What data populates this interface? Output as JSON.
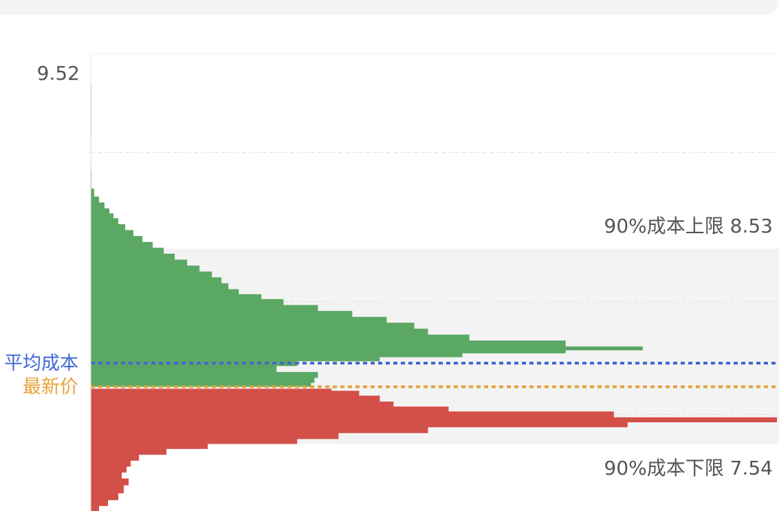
{
  "chart_data": {
    "type": "area",
    "title": "",
    "xlabel": "",
    "ylabel": "",
    "ylim": [
      7.2,
      9.52
    ],
    "y_top_label": "9.52",
    "band": {
      "upper": 8.53,
      "lower": 7.54,
      "upper_label": "90%成本上限 8.53",
      "lower_label": "90%成本下限 7.54"
    },
    "reference_lines": [
      {
        "name": "平均成本",
        "value": 7.95,
        "color": "#4169d4"
      },
      {
        "name": "最新价",
        "value": 7.83,
        "color": "#e8a33a"
      }
    ],
    "colors": {
      "profit": "#5aa864",
      "loss": "#d35048",
      "band_fill": "#f3f3f3",
      "grid": "#dddddd"
    },
    "series": [
      {
        "name": "",
        "points": [
          [
            9.52,
            0.4
          ],
          [
            9.2,
            0.8
          ],
          [
            9.0,
            0.6
          ],
          [
            8.86,
            1.0
          ],
          [
            8.81,
            5.0
          ],
          [
            8.78,
            12.0
          ],
          [
            8.75,
            20.0
          ],
          [
            8.72,
            27.0
          ],
          [
            8.7,
            33.0
          ],
          [
            8.67,
            40.0
          ],
          [
            8.64,
            50.0
          ],
          [
            8.61,
            62.0
          ],
          [
            8.58,
            75.0
          ],
          [
            8.55,
            90.0
          ],
          [
            8.52,
            106.0
          ],
          [
            8.49,
            122.0
          ],
          [
            8.46,
            140.0
          ],
          [
            8.43,
            158.0
          ],
          [
            8.4,
            176.0
          ],
          [
            8.37,
            190.0
          ],
          [
            8.34,
            200.0
          ],
          [
            8.31,
            215.0
          ],
          [
            8.29,
            248.0
          ],
          [
            8.26,
            280.0
          ],
          [
            8.23,
            330.0
          ],
          [
            8.2,
            380.0
          ],
          [
            8.17,
            430.0
          ],
          [
            8.14,
            470.0
          ],
          [
            8.11,
            490.0
          ],
          [
            8.08,
            550.0
          ],
          [
            8.05,
            690.0
          ],
          [
            8.02,
            802.0
          ],
          [
            8.01,
            690.0
          ],
          [
            7.99,
            540.0
          ],
          [
            7.97,
            420.0
          ],
          [
            7.95,
            300.0
          ],
          [
            7.92,
            270.0
          ],
          [
            7.89,
            330.0
          ],
          [
            7.86,
            325.0
          ],
          [
            7.84,
            320.0
          ]
        ]
      },
      {
        "name": "",
        "points": [
          [
            7.82,
            350.0
          ],
          [
            7.8,
            390.0
          ],
          [
            7.77,
            420.0
          ],
          [
            7.74,
            440.0
          ],
          [
            7.72,
            520.0
          ],
          [
            7.69,
            760.0
          ],
          [
            7.66,
            997.0
          ],
          [
            7.64,
            780.0
          ],
          [
            7.61,
            490.0
          ],
          [
            7.58,
            360.0
          ],
          [
            7.55,
            300.0
          ],
          [
            7.53,
            170.0
          ],
          [
            7.5,
            110.0
          ],
          [
            7.47,
            70.0
          ],
          [
            7.44,
            58.0
          ],
          [
            7.41,
            52.0
          ],
          [
            7.38,
            45.0
          ],
          [
            7.35,
            55.0
          ],
          [
            7.31,
            48.0
          ],
          [
            7.27,
            40.0
          ],
          [
            7.24,
            25.0
          ],
          [
            7.21,
            12.0
          ]
        ]
      }
    ],
    "grid": true,
    "legend": "none"
  }
}
